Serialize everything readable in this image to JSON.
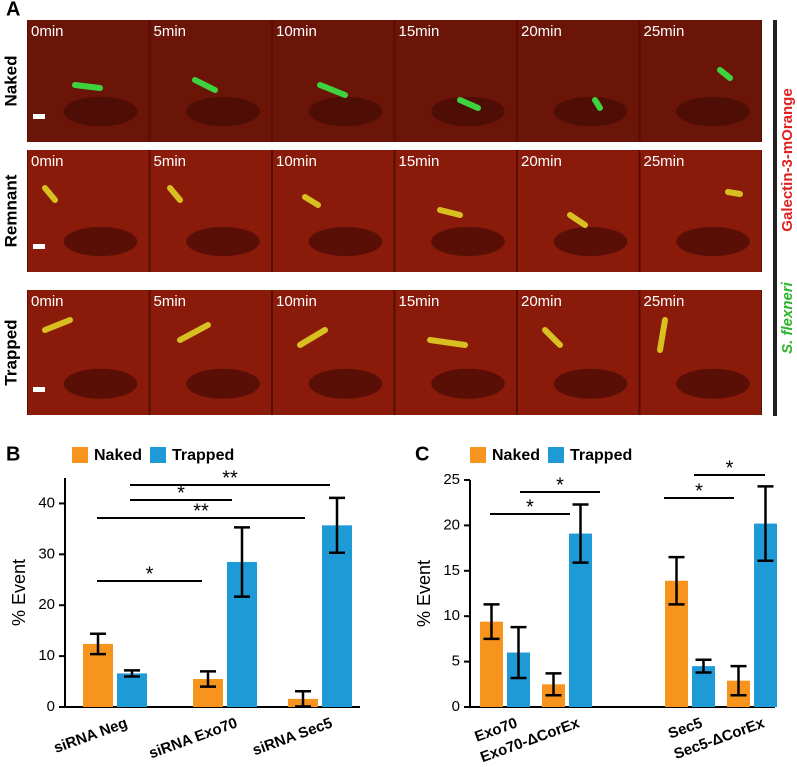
{
  "panel_a": {
    "label": "A",
    "rows": [
      "Naked",
      "Remnant",
      "Trapped"
    ],
    "times": [
      "0min",
      "5min",
      "10min",
      "15min",
      "20min",
      "25min"
    ],
    "side_labels": [
      "S. flexneri",
      "Galectin-3-mOrange"
    ]
  },
  "chart_data": [
    {
      "type": "bar",
      "panel_label": "B",
      "ylabel": "% Event",
      "categories": [
        "siRNA Neg",
        "siRNA Exo70",
        "siRNA Sec5"
      ],
      "series": [
        {
          "name": "Naked",
          "color": "#f7941d",
          "values": [
            12.4,
            5.5,
            1.6
          ],
          "errors": [
            2.0,
            1.5,
            1.5
          ]
        },
        {
          "name": "Trapped",
          "color": "#1e9ad6",
          "values": [
            6.6,
            28.5,
            35.7
          ],
          "errors": [
            0.6,
            6.8,
            5.4
          ]
        }
      ],
      "ylim": [
        0,
        45
      ],
      "yticks": [
        0,
        10,
        20,
        30,
        40
      ],
      "annotations": [
        "*",
        "*",
        "**",
        "**"
      ]
    },
    {
      "type": "bar",
      "panel_label": "C",
      "ylabel": "% Event",
      "categories": [
        "Exo70",
        "Exo70-ΔCorEx",
        "Sec5",
        "Sec5-ΔCorEx"
      ],
      "series": [
        {
          "name": "Naked",
          "color": "#f7941d",
          "values": [
            9.4,
            2.5,
            13.9,
            2.9
          ],
          "errors": [
            1.9,
            1.2,
            2.6,
            1.6
          ]
        },
        {
          "name": "Trapped",
          "color": "#1e9ad6",
          "values": [
            6.0,
            19.1,
            4.5,
            20.2
          ],
          "errors": [
            2.8,
            3.2,
            0.7,
            4.1
          ]
        }
      ],
      "ylim": [
        0,
        25
      ],
      "yticks": [
        0,
        5,
        10,
        15,
        20,
        25
      ],
      "annotations": [
        "*",
        "*",
        "*",
        "*"
      ]
    }
  ]
}
